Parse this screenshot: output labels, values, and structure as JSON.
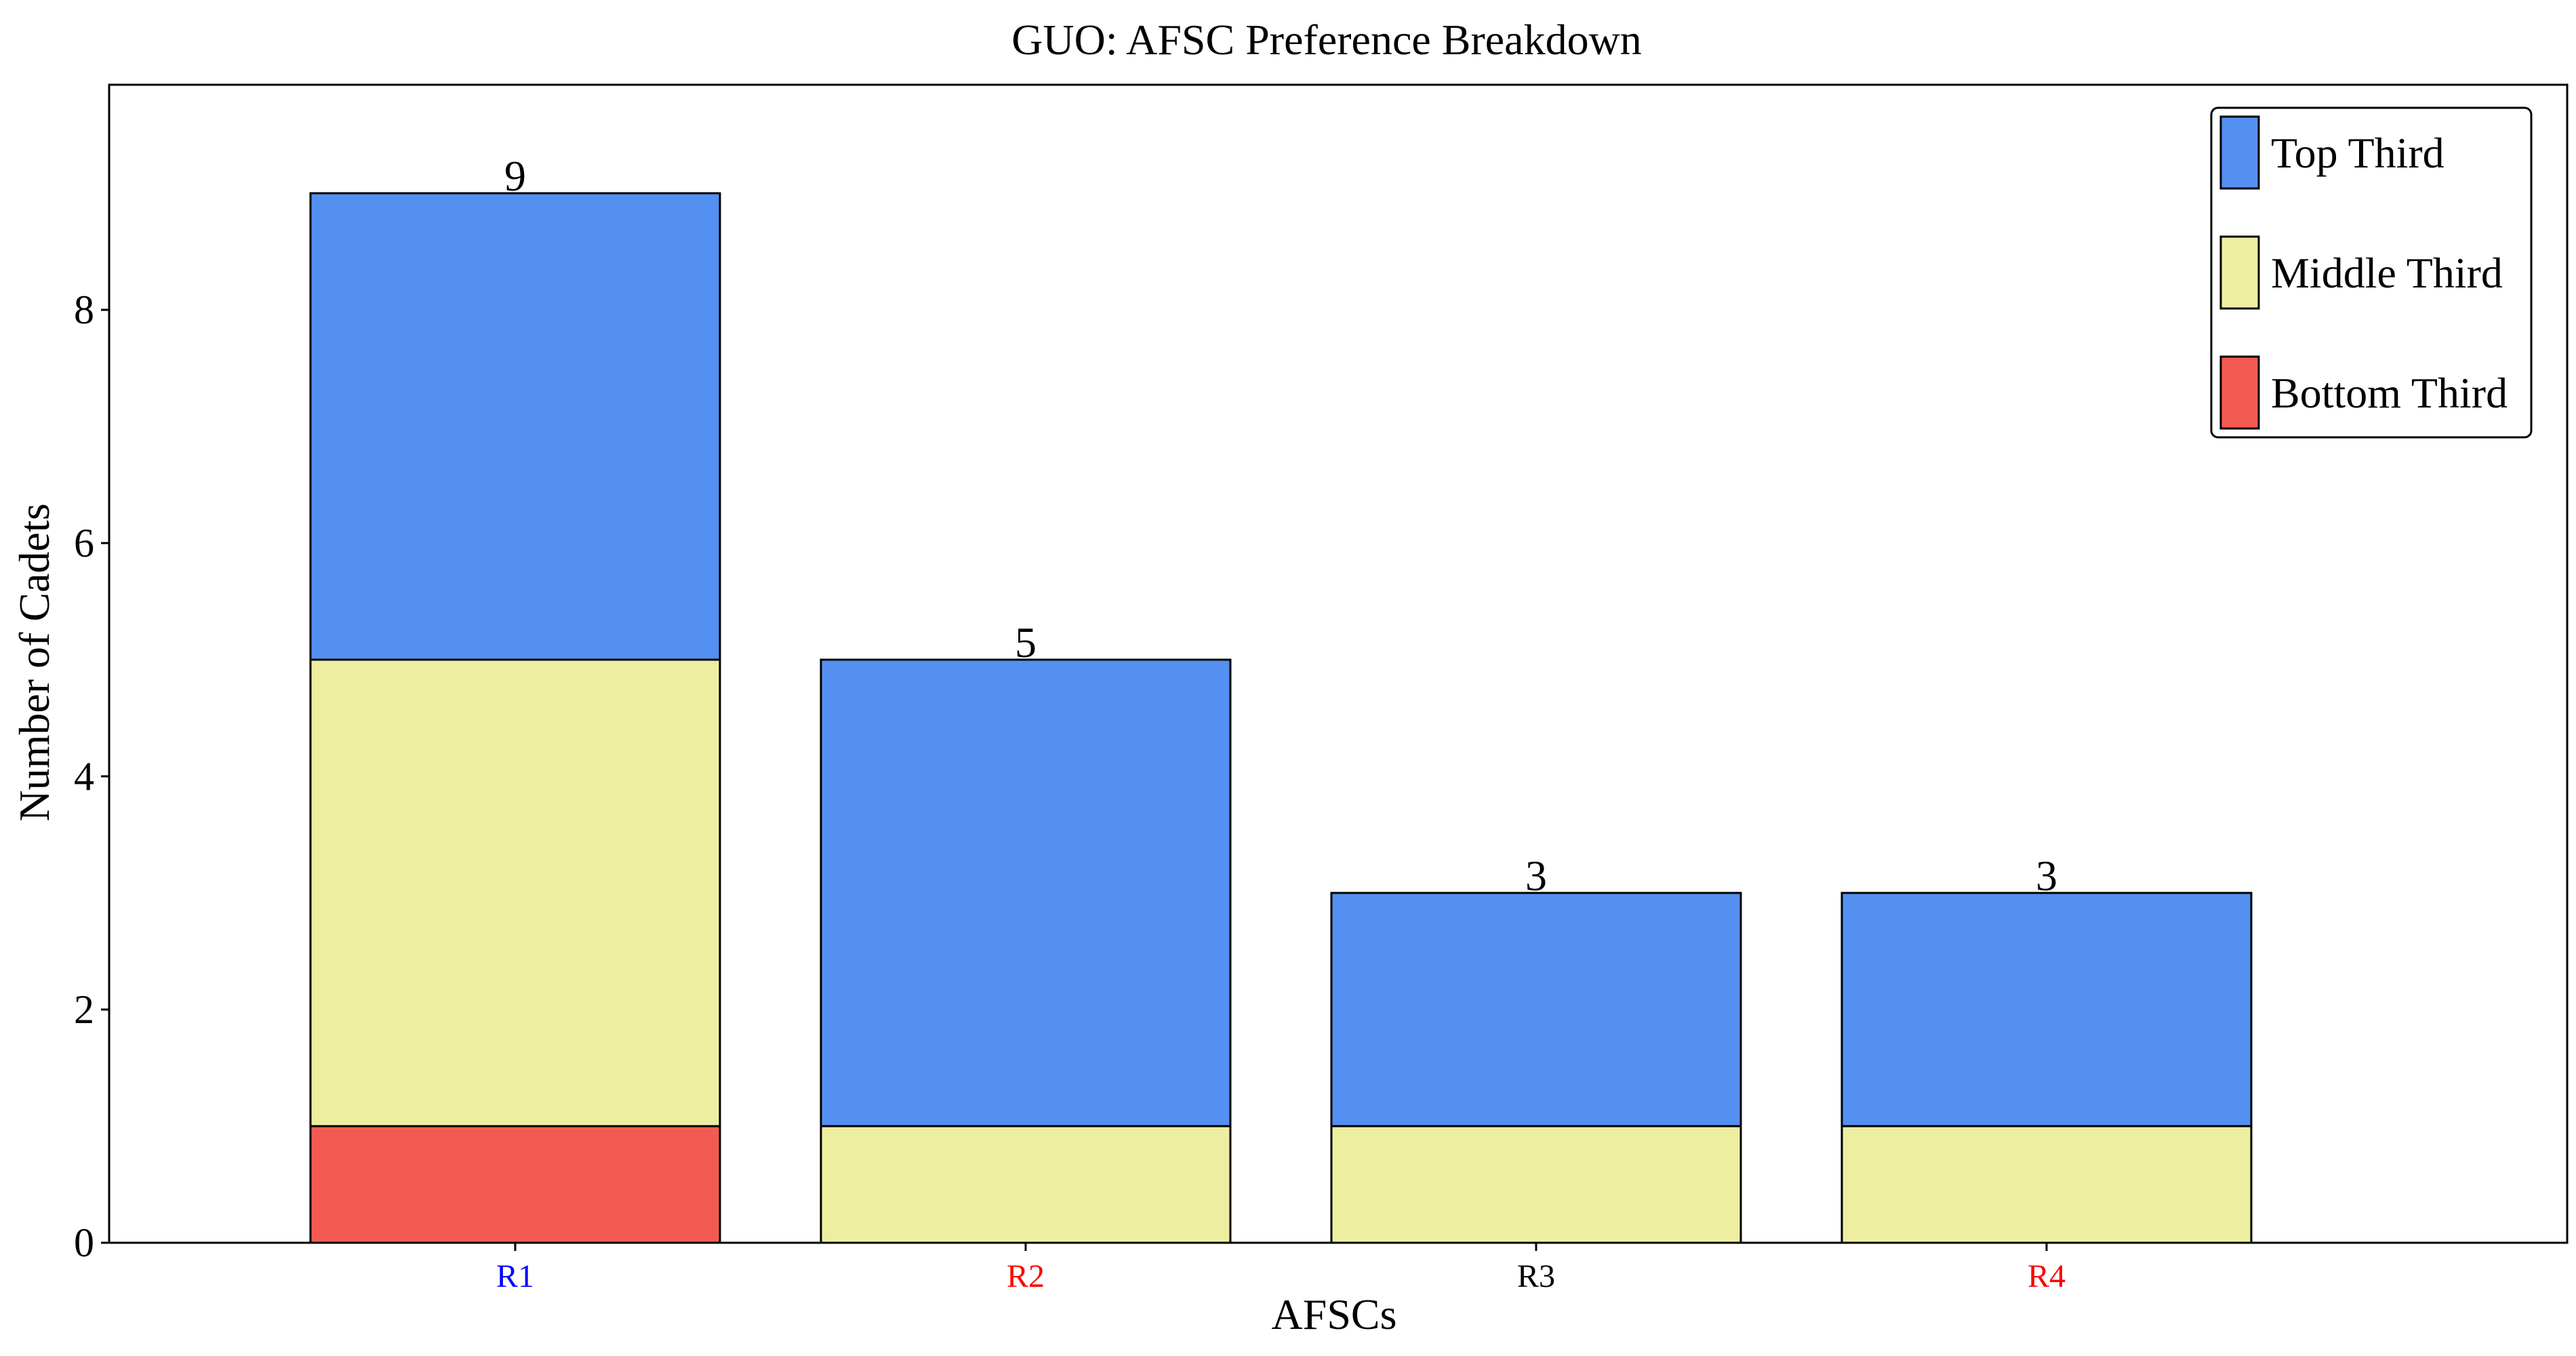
{
  "chart_data": {
    "type": "bar",
    "stacked": true,
    "title": "GUO: AFSC Preference Breakdown",
    "xlabel": "AFSCs",
    "ylabel": "Number of Cadets",
    "categories": [
      "R1",
      "R2",
      "R3",
      "R4"
    ],
    "category_colors": [
      "#0000ff",
      "#ff0000",
      "#000000",
      "#ff0000"
    ],
    "totals": [
      9,
      5,
      3,
      3
    ],
    "series": [
      {
        "name": "Bottom Third",
        "color": "#f35b52",
        "values": [
          1,
          0,
          0,
          0
        ]
      },
      {
        "name": "Middle Third",
        "color": "#eeeea0",
        "values": [
          4,
          1,
          1,
          1
        ]
      },
      {
        "name": "Top Third",
        "color": "#5390f1",
        "values": [
          4,
          4,
          2,
          2
        ]
      }
    ],
    "yticks": [
      0,
      2,
      4,
      6,
      8
    ],
    "ylim": [
      0,
      9.9
    ],
    "grid": false,
    "legend_position": "top-right",
    "legend_order": [
      "Top Third",
      "Middle Third",
      "Bottom Third"
    ]
  }
}
